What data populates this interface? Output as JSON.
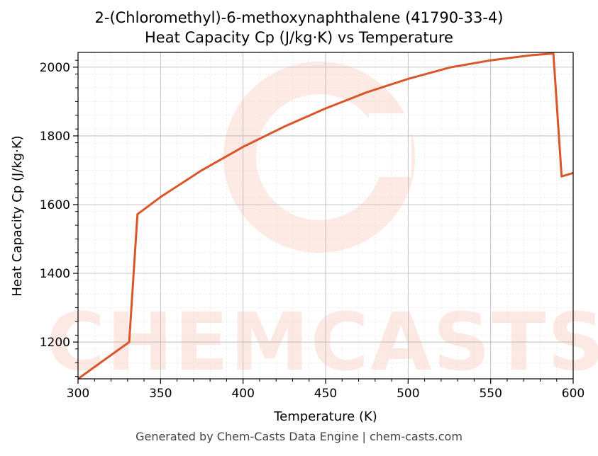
{
  "chart_data": {
    "type": "line",
    "title": "2-(Chloromethyl)-6-methoxynaphthalene (41790-33-4)",
    "subtitle": "Heat Capacity Cp (J/kg·K) vs Temperature",
    "xlabel": "Temperature (K)",
    "ylabel": "Heat Capacity Cp (J/kg·K)",
    "xlim": [
      300,
      600
    ],
    "ylim": [
      1093,
      2043
    ],
    "xticks": [
      300,
      350,
      400,
      450,
      500,
      550,
      600
    ],
    "yticks": [
      1200,
      1400,
      1600,
      1800,
      2000
    ],
    "grid": true,
    "line_color": "#d9552a",
    "series": [
      {
        "x": [
          300,
          331,
          336,
          350,
          375,
          400,
          425,
          450,
          475,
          500,
          525,
          550,
          575,
          588,
          593,
          600
        ],
        "y": [
          1093,
          1200,
          1572,
          1622,
          1700,
          1768,
          1827,
          1880,
          1927,
          1966,
          1999,
          2020,
          2035,
          2040,
          1682,
          1692
        ]
      }
    ]
  },
  "watermark": "CHEMCASTS",
  "footer": "Generated by Chem-Casts Data Engine | chem-casts.com"
}
